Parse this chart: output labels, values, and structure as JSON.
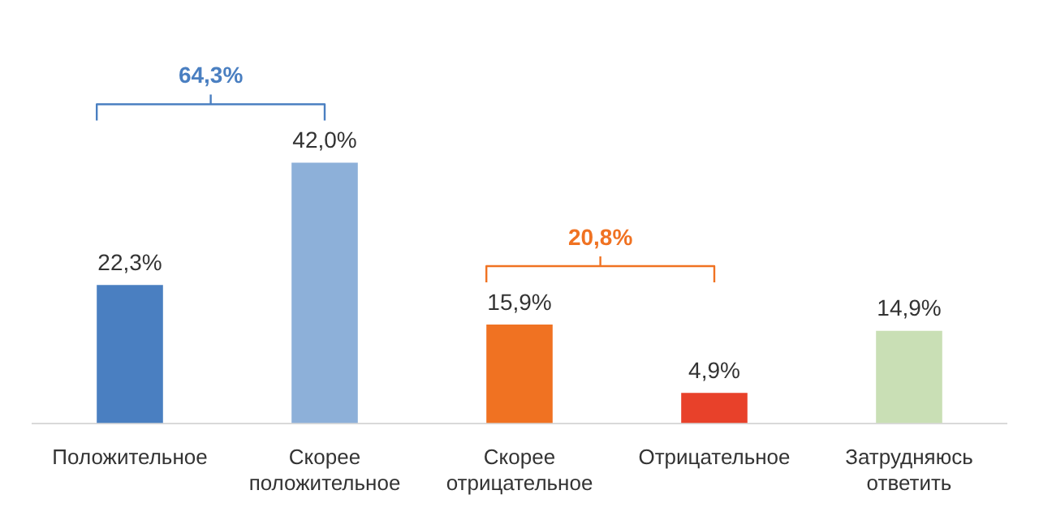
{
  "chart_data": {
    "type": "bar",
    "categories": [
      "Положительное",
      "Скорее положительное",
      "Скорее отрицательное",
      "Отрицательное",
      "Затрудняюсь ответить"
    ],
    "values": [
      22.3,
      42.0,
      15.9,
      4.9,
      14.9
    ],
    "colors": [
      "#4a7fc1",
      "#8db0d9",
      "#f07222",
      "#e8412a",
      "#c9dfb5"
    ],
    "value_labels": [
      "22,3%",
      "42,0%",
      "15,9%",
      "4,9%",
      "14,9%"
    ],
    "annotations": [
      "64,3%",
      "20,8%"
    ],
    "grid": false,
    "legend": false
  }
}
